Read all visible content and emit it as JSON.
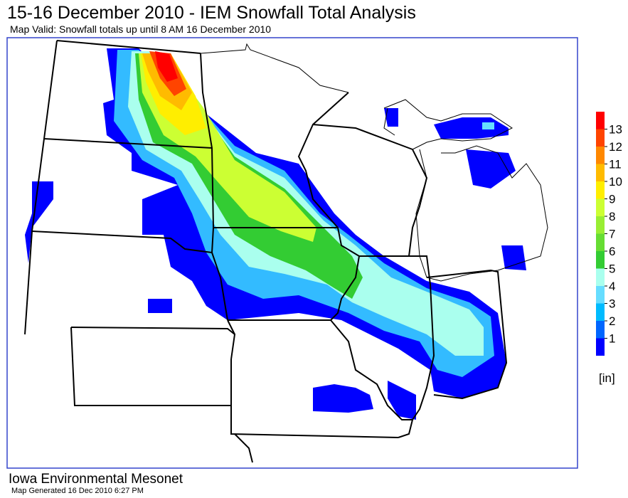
{
  "header": {
    "title": "15-16 December 2010 - IEM Snowfall Total Analysis",
    "subtitle": "Map Valid: Snowfall totals up until 8 AM 16 December 2010"
  },
  "legend": {
    "ticks": [
      1,
      2,
      3,
      4,
      5,
      6,
      7,
      8,
      9,
      10,
      11,
      12,
      13
    ],
    "unit": "[in]",
    "colors": [
      "#0000ff",
      "#0066ff",
      "#00bbff",
      "#66ddff",
      "#aaffee",
      "#33cc33",
      "#66dd33",
      "#99ee33",
      "#ccff33",
      "#ffee00",
      "#ffbb00",
      "#ff8800",
      "#ff4400",
      "#ff0000"
    ]
  },
  "footer": {
    "org": "Iowa Environmental Mesonet",
    "generated": "Map Generated 16 Dec 2010 6:27 PM"
  }
}
